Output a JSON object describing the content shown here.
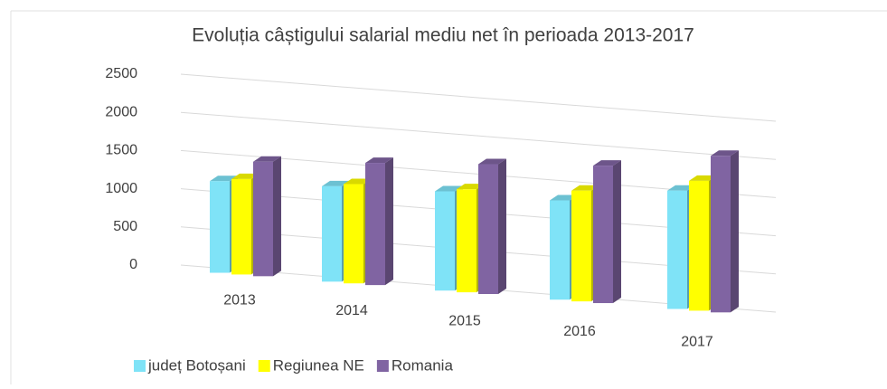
{
  "chart_data": {
    "type": "bar3d",
    "title": "Evoluția câștigului salarial mediu net în perioada 2013-2017",
    "categories": [
      "2013",
      "2014",
      "2015",
      "2016",
      "2017"
    ],
    "series": [
      {
        "name": "județ Botoșani",
        "color": "#7fe3f7",
        "values": [
          1200,
          1250,
          1300,
          1300,
          1550
        ]
      },
      {
        "name": "Regiunea NE",
        "color": "#ffff00",
        "values": [
          1250,
          1300,
          1350,
          1450,
          1700
        ]
      },
      {
        "name": "Romania",
        "color": "#8064a2",
        "values": [
          1500,
          1600,
          1700,
          1800,
          2050
        ]
      }
    ],
    "ylim": [
      0,
      2500
    ],
    "yticks": [
      0,
      500,
      1000,
      1500,
      2000,
      2500
    ],
    "grid": true
  }
}
